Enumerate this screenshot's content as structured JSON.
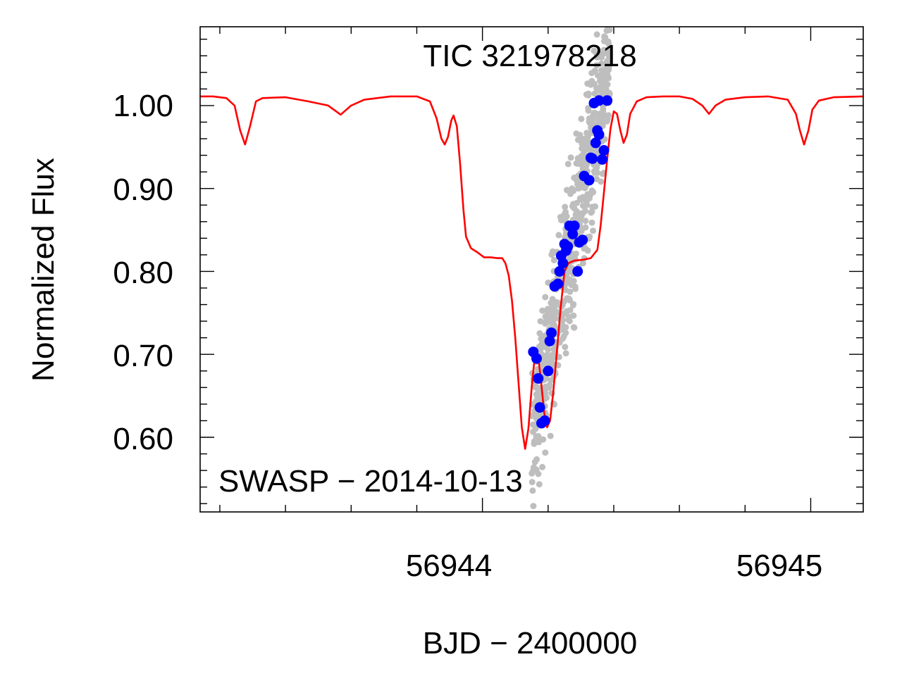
{
  "chart_data": {
    "type": "scatter",
    "title": "TIC 321978218",
    "annotation": "SWASP − 2014-10-13",
    "xlabel": "BJD − 2400000",
    "ylabel": "Normalized Flux",
    "xlim": [
      56943.14,
      56945.16
    ],
    "ylim": [
      0.51,
      1.095
    ],
    "x_ticks": [
      56944,
      56945
    ],
    "x_tick_labels": [
      "56944",
      "56945"
    ],
    "y_ticks": [
      0.6,
      0.7,
      0.8,
      0.9,
      1.0
    ],
    "y_tick_labels": [
      "0.60",
      "0.70",
      "0.80",
      "0.90",
      "1.00"
    ],
    "colors": {
      "model": "#ff0000",
      "binned": "#0000ff",
      "raw": "#bebebe"
    },
    "series": [
      {
        "name": "model",
        "kind": "line",
        "points": [
          [
            56943.14,
            1.011
          ],
          [
            56943.18,
            1.011
          ],
          [
            56943.22,
            1.009
          ],
          [
            56943.245,
            1.0
          ],
          [
            56943.262,
            0.97
          ],
          [
            56943.277,
            0.953
          ],
          [
            56943.292,
            0.975
          ],
          [
            56943.31,
            1.005
          ],
          [
            56943.33,
            1.009
          ],
          [
            56943.4,
            1.01
          ],
          [
            56943.47,
            1.005
          ],
          [
            56943.53,
            1.0
          ],
          [
            56943.568,
            0.989
          ],
          [
            56943.6,
            1.0
          ],
          [
            56943.64,
            1.007
          ],
          [
            56943.72,
            1.011
          ],
          [
            56943.8,
            1.011
          ],
          [
            56943.84,
            1.005
          ],
          [
            56943.86,
            0.985
          ],
          [
            56943.875,
            0.96
          ],
          [
            56943.885,
            0.953
          ],
          [
            56943.895,
            0.962
          ],
          [
            56943.905,
            0.982
          ],
          [
            56943.912,
            0.988
          ],
          [
            56943.922,
            0.975
          ],
          [
            56943.932,
            0.93
          ],
          [
            56943.942,
            0.875
          ],
          [
            56943.95,
            0.842
          ],
          [
            56943.965,
            0.828
          ],
          [
            56943.985,
            0.823
          ],
          [
            56944.005,
            0.817
          ],
          [
            56944.025,
            0.817
          ],
          [
            56944.045,
            0.816
          ],
          [
            56944.06,
            0.816
          ],
          [
            56944.07,
            0.81
          ],
          [
            56944.08,
            0.795
          ],
          [
            56944.09,
            0.765
          ],
          [
            56944.1,
            0.72
          ],
          [
            56944.11,
            0.665
          ],
          [
            56944.12,
            0.612
          ],
          [
            56944.13,
            0.586
          ],
          [
            56944.14,
            0.61
          ],
          [
            56944.15,
            0.66
          ],
          [
            56944.16,
            0.7
          ],
          [
            56944.17,
            0.697
          ],
          [
            56944.178,
            0.67
          ],
          [
            56944.188,
            0.63
          ],
          [
            56944.197,
            0.612
          ],
          [
            56944.206,
            0.62
          ],
          [
            56944.216,
            0.655
          ],
          [
            56944.226,
            0.7
          ],
          [
            56944.238,
            0.755
          ],
          [
            56944.25,
            0.8
          ],
          [
            56944.262,
            0.81
          ],
          [
            56944.28,
            0.813
          ],
          [
            56944.305,
            0.814
          ],
          [
            56944.33,
            0.816
          ],
          [
            56944.35,
            0.826
          ],
          [
            56944.36,
            0.855
          ],
          [
            56944.37,
            0.895
          ],
          [
            56944.38,
            0.935
          ],
          [
            56944.39,
            0.972
          ],
          [
            56944.4,
            0.993
          ],
          [
            56944.41,
            0.99
          ],
          [
            56944.42,
            0.97
          ],
          [
            56944.43,
            0.955
          ],
          [
            56944.44,
            0.965
          ],
          [
            56944.45,
            0.99
          ],
          [
            56944.47,
            1.005
          ],
          [
            56944.5,
            1.01
          ],
          [
            56944.55,
            1.011
          ],
          [
            56944.6,
            1.011
          ],
          [
            56944.64,
            1.008
          ],
          [
            56944.67,
            1.0
          ],
          [
            56944.69,
            0.99
          ],
          [
            56944.71,
            1.0
          ],
          [
            56944.74,
            1.007
          ],
          [
            56944.8,
            1.01
          ],
          [
            56944.87,
            1.011
          ],
          [
            56944.93,
            1.007
          ],
          [
            56944.955,
            0.99
          ],
          [
            56944.967,
            0.97
          ],
          [
            56944.98,
            0.953
          ],
          [
            56944.993,
            0.97
          ],
          [
            56945.005,
            0.995
          ],
          [
            56945.025,
            1.006
          ],
          [
            56945.07,
            1.01
          ],
          [
            56945.16,
            1.011
          ]
        ]
      },
      {
        "name": "binned",
        "kind": "points",
        "points": [
          [
            56944.155,
            0.703
          ],
          [
            56944.165,
            0.695
          ],
          [
            56944.17,
            0.671
          ],
          [
            56944.175,
            0.636
          ],
          [
            56944.18,
            0.617
          ],
          [
            56944.19,
            0.62
          ],
          [
            56944.2,
            0.68
          ],
          [
            56944.205,
            0.716
          ],
          [
            56944.21,
            0.726
          ],
          [
            56944.22,
            0.782
          ],
          [
            56944.23,
            0.785
          ],
          [
            56944.235,
            0.8
          ],
          [
            56944.24,
            0.819
          ],
          [
            56944.245,
            0.81
          ],
          [
            56944.25,
            0.833
          ],
          [
            56944.255,
            0.825
          ],
          [
            56944.26,
            0.83
          ],
          [
            56944.265,
            0.855
          ],
          [
            56944.275,
            0.845
          ],
          [
            56944.28,
            0.855
          ],
          [
            56944.29,
            0.8
          ],
          [
            56944.295,
            0.835
          ],
          [
            56944.305,
            0.838
          ],
          [
            56944.31,
            0.915
          ],
          [
            56944.325,
            0.91
          ],
          [
            56944.33,
            0.937
          ],
          [
            56944.335,
            0.936
          ],
          [
            56944.345,
            0.955
          ],
          [
            56944.35,
            0.97
          ],
          [
            56944.355,
            0.965
          ],
          [
            56944.34,
            1.003
          ],
          [
            56944.355,
            1.006
          ],
          [
            56944.365,
            0.935
          ],
          [
            56944.37,
            0.946
          ],
          [
            56944.38,
            1.006
          ]
        ]
      }
    ]
  }
}
